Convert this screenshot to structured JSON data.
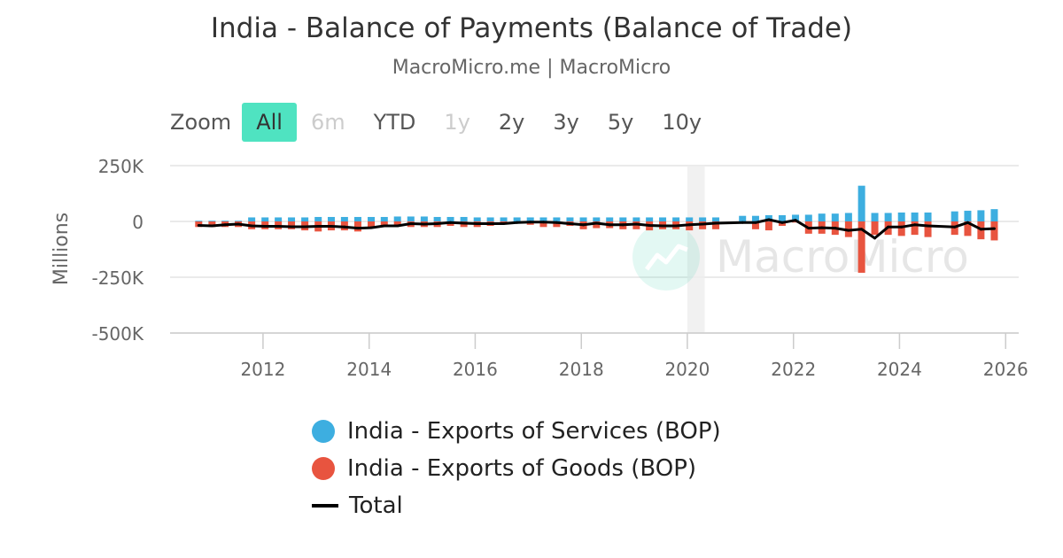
{
  "header": {
    "title": "India - Balance of Payments (Balance of Trade)",
    "subtitle": "MacroMicro.me | MacroMicro"
  },
  "zoom": {
    "label": "Zoom",
    "buttons": [
      {
        "label": "All",
        "state": "active"
      },
      {
        "label": "6m",
        "state": "disabled"
      },
      {
        "label": "YTD",
        "state": "normal"
      },
      {
        "label": "1y",
        "state": "disabled"
      },
      {
        "label": "2y",
        "state": "normal"
      },
      {
        "label": "3y",
        "state": "normal"
      },
      {
        "label": "5y",
        "state": "normal"
      },
      {
        "label": "10y",
        "state": "normal"
      }
    ]
  },
  "watermark": "MacroMicro",
  "colors": {
    "services": "#3daee0",
    "goods": "#e8543f",
    "total": "#000000",
    "zoom_active": "#4fe3c1"
  },
  "chart_data": {
    "type": "bar",
    "stacking": "normal",
    "ylabel": "Millions",
    "ylim": [
      -500000,
      250000
    ],
    "yticks": [
      250000,
      0,
      -250000,
      -500000
    ],
    "ytick_labels": [
      "250K",
      "0",
      "-250K",
      "-500K"
    ],
    "xlim": [
      "2010-04-01",
      "2026-04-01"
    ],
    "xticks": [
      "2012",
      "2014",
      "2016",
      "2018",
      "2020",
      "2022",
      "2024",
      "2026"
    ],
    "highlight_band": [
      "2020-01-01",
      "2020-04-30"
    ],
    "grid": true,
    "legend_position": "bottom",
    "quarters": [
      "2010-10",
      "2011-01",
      "2011-04",
      "2011-07",
      "2011-10",
      "2012-01",
      "2012-04",
      "2012-07",
      "2012-10",
      "2013-01",
      "2013-04",
      "2013-07",
      "2013-10",
      "2014-01",
      "2014-04",
      "2014-07",
      "2014-10",
      "2015-01",
      "2015-04",
      "2015-07",
      "2015-10",
      "2016-01",
      "2016-04",
      "2016-07",
      "2016-10",
      "2017-01",
      "2017-04",
      "2017-07",
      "2017-10",
      "2018-01",
      "2018-04",
      "2018-07",
      "2018-10",
      "2019-01",
      "2019-04",
      "2019-07",
      "2019-10",
      "2020-01",
      "2020-04",
      "2020-07",
      "2021-01",
      "2021-04",
      "2021-07",
      "2021-10",
      "2022-01",
      "2022-04",
      "2022-07",
      "2022-10",
      "2023-01",
      "2023-04",
      "2023-07",
      "2023-10",
      "2024-01",
      "2024-04",
      "2024-07",
      "2025-01",
      "2025-04",
      "2025-07",
      "2025-10"
    ],
    "series": [
      {
        "name": "India - Exports of Services (BOP)",
        "values": [
          3000,
          3000,
          3000,
          3000,
          18000,
          18000,
          18000,
          18000,
          18000,
          20000,
          20000,
          20000,
          20000,
          20000,
          20000,
          22000,
          22000,
          22000,
          20000,
          20000,
          20000,
          18000,
          18000,
          18000,
          18000,
          18000,
          18000,
          18000,
          18000,
          18000,
          18000,
          18000,
          18000,
          18000,
          18000,
          18000,
          18000,
          18000,
          18000,
          18000,
          25000,
          25000,
          28000,
          28000,
          30000,
          30000,
          35000,
          35000,
          38000,
          160000,
          38000,
          38000,
          40000,
          40000,
          40000,
          45000,
          48000,
          50000,
          55000
        ]
      },
      {
        "name": "India - Exports of Goods (BOP)",
        "values": [
          -25000,
          -25000,
          -25000,
          -25000,
          -35000,
          -35000,
          -35000,
          -35000,
          -40000,
          -45000,
          -40000,
          -40000,
          -45000,
          -25000,
          -20000,
          -20000,
          -25000,
          -25000,
          -25000,
          -20000,
          -25000,
          -25000,
          -20000,
          -10000,
          -10000,
          -15000,
          -25000,
          -25000,
          -20000,
          -35000,
          -30000,
          -30000,
          -35000,
          -35000,
          -40000,
          -35000,
          -35000,
          -40000,
          -35000,
          -35000,
          -5000,
          -35000,
          -40000,
          -20000,
          -5000,
          -55000,
          -55000,
          -60000,
          -70000,
          -230000,
          -60000,
          -60000,
          -65000,
          -60000,
          -70000,
          -60000,
          -65000,
          -80000,
          -85000
        ]
      },
      {
        "name": "Total",
        "values": [
          -18000,
          -20000,
          -15000,
          -12000,
          -20000,
          -22000,
          -22000,
          -24000,
          -24000,
          -22000,
          -22000,
          -25000,
          -30000,
          -28000,
          -20000,
          -20000,
          -10000,
          -12000,
          -10000,
          -5000,
          -8000,
          -10000,
          -10000,
          -10000,
          -5000,
          -3000,
          -3000,
          -5000,
          -10000,
          -15000,
          -8000,
          -15000,
          -15000,
          -12000,
          -18000,
          -20000,
          -20000,
          -15000,
          -12000,
          -8000,
          -5000,
          -5000,
          8000,
          -5000,
          5000,
          -30000,
          -28000,
          -30000,
          -40000,
          -35000,
          -75000,
          -25000,
          -25000,
          -15000,
          -20000,
          -25000,
          -5000,
          -35000,
          -32000
        ]
      }
    ]
  },
  "legend": {
    "items": [
      {
        "label": "India - Exports of Services (BOP)"
      },
      {
        "label": "India - Exports of Goods (BOP)"
      },
      {
        "label": "Total"
      }
    ]
  }
}
